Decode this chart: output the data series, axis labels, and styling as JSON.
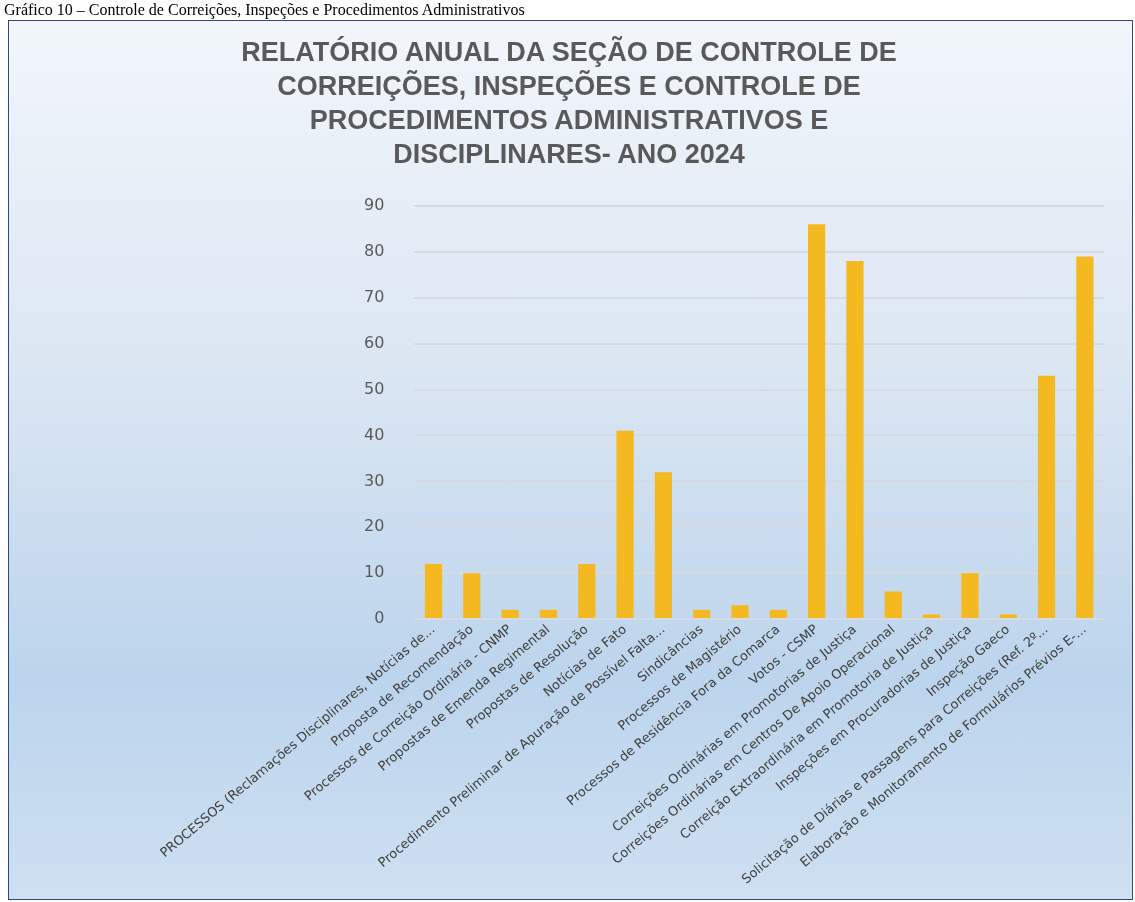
{
  "chart_data": {
    "type": "bar",
    "title": "RELATÓRIO ANUAL DA SEÇÃO DE CONTROLE DE CORREIÇÕES, INSPEÇÕES E CONTROLE DE PROCEDIMENTOS ADMINISTRATIVOS E DISCIPLINARES- ANO 2024",
    "annotations": [
      "Gráfico 10 – Controle de Correições, Inspeções e Procedimentos Administrativos"
    ],
    "categories": [
      "PROCESSOS (Reclamações Disciplinares, Notícias de...",
      "Proposta de Recomendação",
      "Processos de Correição Ordinária - CNMP",
      "Propostas de Emenda Regimental",
      "Propostas de Resolução",
      "Notícias de Fato",
      "Procedimento Preliminar de Apuração de Possível Falta...",
      "Sindicâncias",
      "Processos de Magistério",
      "Processos de Residência Fora da Comarca",
      "Votos - CSMP",
      "Correições Ordinárias em Promotorias de Justiça",
      "Correições Ordinárias em Centros De Apoio Operacional",
      "Correição Extraordinária em Promotoria de Justiça",
      "Inspeções em Procuradorias de Justiça",
      "Inspeção Gaeco",
      "Solicitação de Diárias e Passagens para Correições (Ref. 2º...",
      "Elaboração e Monitoramento de Formulários Prévios E-..."
    ],
    "values": [
      12,
      10,
      2,
      2,
      12,
      41,
      32,
      2,
      3,
      2,
      86,
      78,
      6,
      1,
      10,
      1,
      53,
      79
    ],
    "color": "#f4b920",
    "ylim": [
      0,
      90
    ],
    "yticks": [
      0,
      10,
      20,
      30,
      40,
      50,
      60,
      70,
      80,
      90
    ],
    "grid": "y",
    "legend": false
  }
}
